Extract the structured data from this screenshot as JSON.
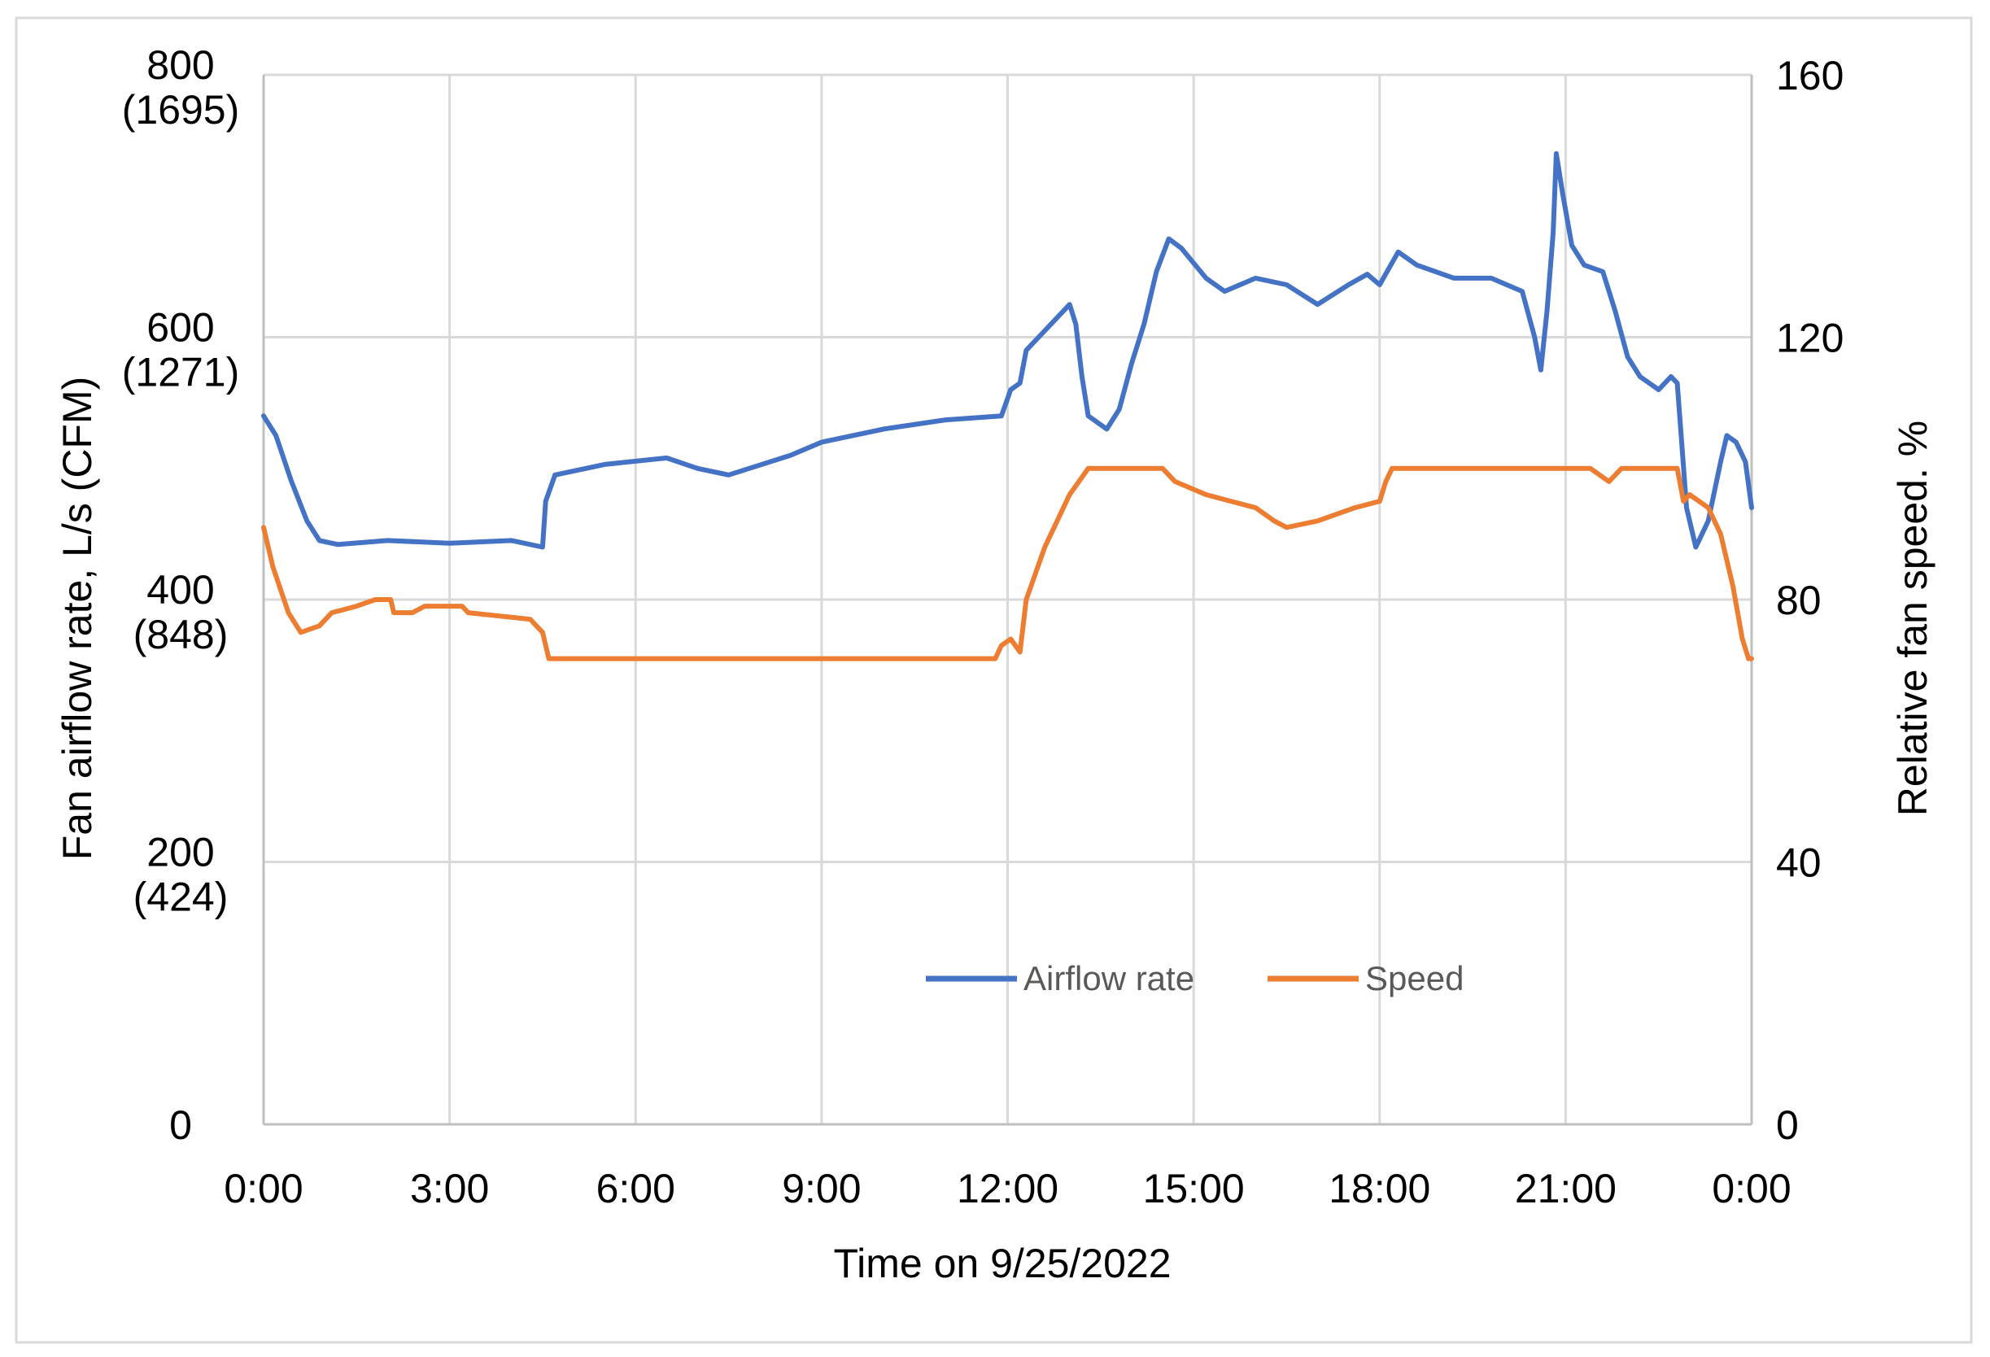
{
  "chart_data": {
    "type": "line",
    "xlabel": "Time on 9/25/2022",
    "ylabel": "Fan airflow rate, L/s (CFM)",
    "y2label": "Relative fan speed. %",
    "x_ticks": [
      "0:00",
      "3:00",
      "6:00",
      "9:00",
      "12:00",
      "15:00",
      "18:00",
      "21:00",
      "0:00"
    ],
    "xlim_hours": [
      0,
      24
    ],
    "y_ticks": [
      {
        "value": 0,
        "label": "0",
        "sub": ""
      },
      {
        "value": 200,
        "label": "200",
        "sub": "(424)"
      },
      {
        "value": 400,
        "label": "400",
        "sub": "(848)"
      },
      {
        "value": 600,
        "label": "600",
        "sub": "(1271)"
      },
      {
        "value": 800,
        "label": "800",
        "sub": "(1695)"
      }
    ],
    "y2_ticks": [
      "0",
      "40",
      "80",
      "120",
      "160"
    ],
    "ylim": [
      0,
      800
    ],
    "y2lim": [
      0,
      160
    ],
    "grid": true,
    "legend_position": "bottom-center (inside plot)",
    "series": [
      {
        "name": "Airflow rate",
        "axis": "left",
        "color": "#4472C4",
        "points": [
          [
            0,
            540
          ],
          [
            0.2,
            525
          ],
          [
            0.45,
            490
          ],
          [
            0.7,
            460
          ],
          [
            0.9,
            445
          ],
          [
            1.2,
            442
          ],
          [
            2,
            445
          ],
          [
            3,
            443
          ],
          [
            4,
            445
          ],
          [
            4.5,
            440
          ],
          [
            4.55,
            475
          ],
          [
            4.7,
            495
          ],
          [
            5.5,
            503
          ],
          [
            6.5,
            508
          ],
          [
            7,
            500
          ],
          [
            7.5,
            495
          ],
          [
            8.5,
            510
          ],
          [
            9,
            520
          ],
          [
            10,
            530
          ],
          [
            11,
            537
          ],
          [
            11.9,
            540
          ],
          [
            12.05,
            560
          ],
          [
            12.2,
            565
          ],
          [
            12.3,
            590
          ],
          [
            12.5,
            600
          ],
          [
            12.7,
            610
          ],
          [
            13,
            625
          ],
          [
            13.1,
            610
          ],
          [
            13.2,
            570
          ],
          [
            13.3,
            540
          ],
          [
            13.6,
            530
          ],
          [
            13.8,
            545
          ],
          [
            14,
            580
          ],
          [
            14.2,
            610
          ],
          [
            14.4,
            650
          ],
          [
            14.6,
            675
          ],
          [
            14.8,
            668
          ],
          [
            15.2,
            645
          ],
          [
            15.5,
            635
          ],
          [
            16,
            645
          ],
          [
            16.5,
            640
          ],
          [
            17,
            625
          ],
          [
            17.5,
            640
          ],
          [
            17.8,
            648
          ],
          [
            18,
            640
          ],
          [
            18.3,
            665
          ],
          [
            18.6,
            655
          ],
          [
            19.2,
            645
          ],
          [
            19.8,
            645
          ],
          [
            20.3,
            635
          ],
          [
            20.5,
            600
          ],
          [
            20.6,
            575
          ],
          [
            20.7,
            620
          ],
          [
            20.8,
            680
          ],
          [
            20.85,
            740
          ],
          [
            20.95,
            710
          ],
          [
            21.1,
            670
          ],
          [
            21.3,
            655
          ],
          [
            21.6,
            650
          ],
          [
            21.8,
            620
          ],
          [
            22,
            585
          ],
          [
            22.2,
            570
          ],
          [
            22.5,
            560
          ],
          [
            22.7,
            570
          ],
          [
            22.8,
            565
          ],
          [
            22.95,
            470
          ],
          [
            23.1,
            440
          ],
          [
            23.3,
            460
          ],
          [
            23.5,
            505
          ],
          [
            23.6,
            525
          ],
          [
            23.75,
            520
          ],
          [
            23.9,
            505
          ],
          [
            24,
            470
          ]
        ]
      },
      {
        "name": "Speed",
        "axis": "right",
        "color": "#ED7D31",
        "points": [
          [
            0,
            91
          ],
          [
            0.15,
            85
          ],
          [
            0.4,
            78
          ],
          [
            0.6,
            75
          ],
          [
            0.9,
            76
          ],
          [
            1.1,
            78
          ],
          [
            1.5,
            79
          ],
          [
            1.8,
            80
          ],
          [
            2.05,
            80
          ],
          [
            2.1,
            78
          ],
          [
            2.4,
            78
          ],
          [
            2.6,
            79
          ],
          [
            3.2,
            79
          ],
          [
            3.3,
            78
          ],
          [
            4.3,
            77
          ],
          [
            4.5,
            75
          ],
          [
            4.6,
            71
          ],
          [
            6,
            71
          ],
          [
            9,
            71
          ],
          [
            11.5,
            71
          ],
          [
            11.8,
            71
          ],
          [
            11.9,
            73
          ],
          [
            12.05,
            74
          ],
          [
            12.2,
            72
          ],
          [
            12.3,
            80
          ],
          [
            12.6,
            88
          ],
          [
            13,
            96
          ],
          [
            13.3,
            100
          ],
          [
            14.5,
            100
          ],
          [
            14.7,
            98
          ],
          [
            15.2,
            96
          ],
          [
            15.6,
            95
          ],
          [
            16,
            94
          ],
          [
            16.3,
            92
          ],
          [
            16.5,
            91
          ],
          [
            17,
            92
          ],
          [
            17.3,
            93
          ],
          [
            17.6,
            94
          ],
          [
            18,
            95
          ],
          [
            18.1,
            98
          ],
          [
            18.2,
            100
          ],
          [
            18.4,
            100
          ],
          [
            18.6,
            100
          ],
          [
            21.4,
            100
          ],
          [
            21.7,
            98
          ],
          [
            21.9,
            100
          ],
          [
            22.8,
            100
          ],
          [
            22.9,
            95
          ],
          [
            23,
            96
          ],
          [
            23.3,
            94
          ],
          [
            23.5,
            90
          ],
          [
            23.7,
            82
          ],
          [
            23.85,
            74
          ],
          [
            23.95,
            71
          ],
          [
            24,
            71
          ]
        ]
      }
    ]
  }
}
